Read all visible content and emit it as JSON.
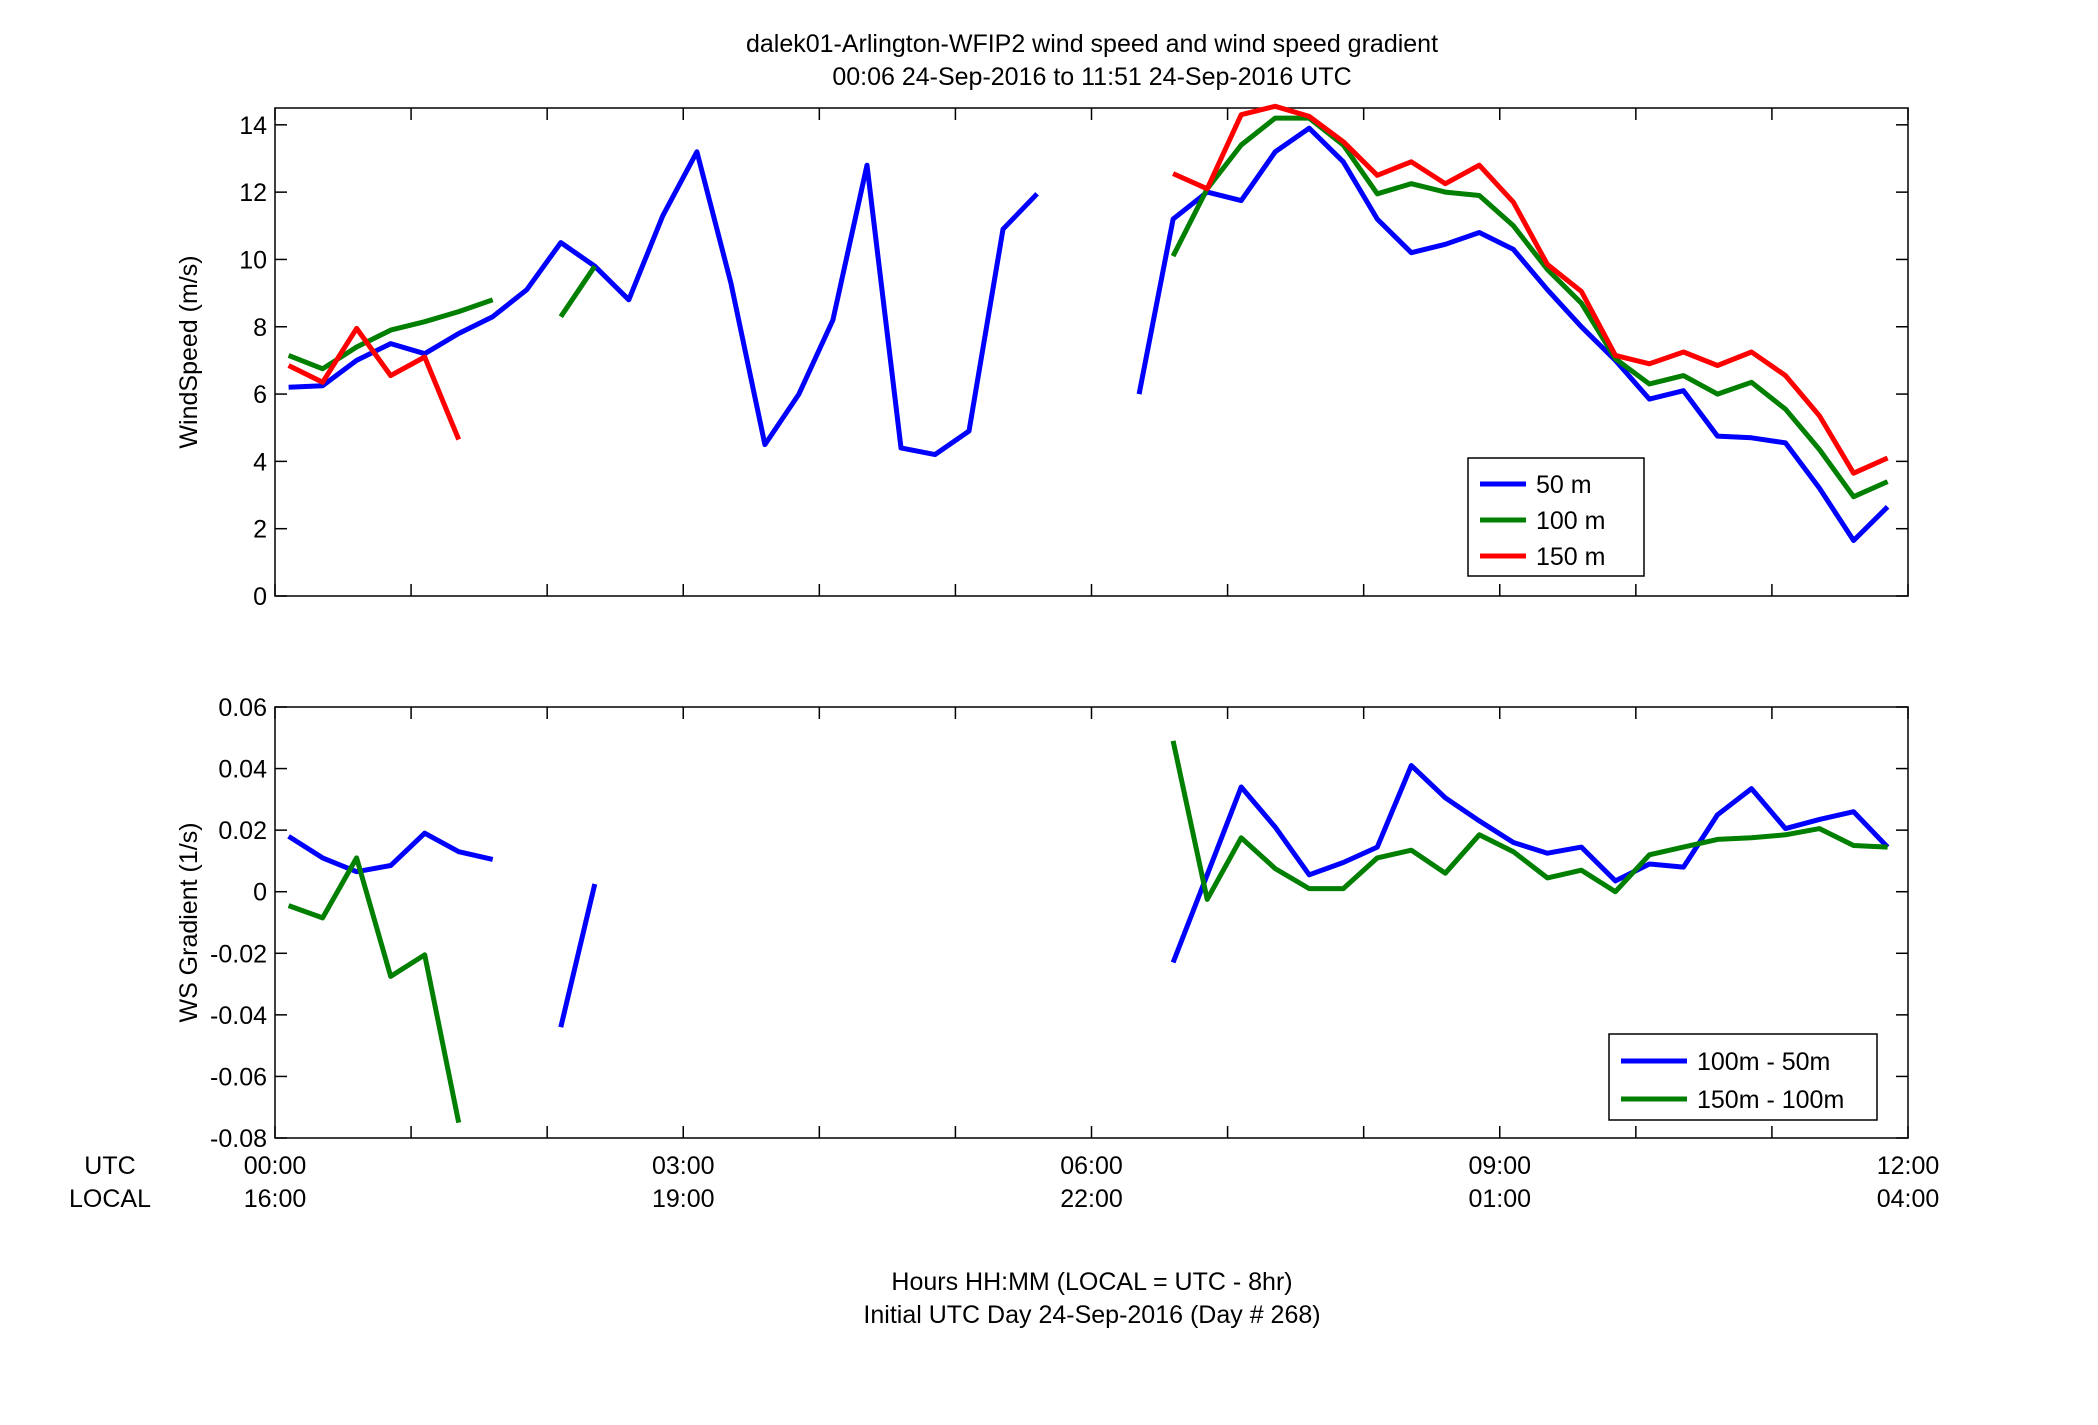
{
  "figure": {
    "title_line1": "dalek01-Arlington-WFIP2  wind speed and wind speed gradient",
    "title_line2": "00:06 24-Sep-2016 to 11:51 24-Sep-2016  UTC",
    "xlabel_line1": "Hours HH:MM  (LOCAL = UTC - 8hr)",
    "xlabel_line2": "Initial UTC Day 24-Sep-2016 (Day # 268)",
    "utc_label": "UTC",
    "local_label": "LOCAL",
    "colors": {
      "blue": "#0000ff",
      "green": "#007f00",
      "red": "#ff0000"
    }
  },
  "chart_data": [
    {
      "type": "line",
      "title": "dalek01-Arlington-WFIP2  wind speed and wind speed gradient",
      "ylabel": "WindSpeed (m/s)",
      "xlim": [
        0,
        12
      ],
      "ylim": [
        0,
        14.5
      ],
      "yticks": [
        0,
        2,
        4,
        6,
        8,
        10,
        12,
        14
      ],
      "ytick_labels": [
        "0",
        "2",
        "4",
        "6",
        "8",
        "10",
        "12",
        "14"
      ],
      "legend_position": "lower-right",
      "x": [
        0.1,
        0.35,
        0.6,
        0.85,
        1.1,
        1.35,
        1.6,
        1.85,
        2.1,
        2.35,
        2.6,
        2.85,
        3.1,
        3.35,
        3.6,
        3.85,
        4.1,
        4.35,
        4.6,
        4.85,
        5.1,
        5.35,
        5.6,
        5.85,
        6.1,
        6.35,
        6.6,
        6.85,
        7.1,
        7.35,
        7.6,
        7.85,
        8.1,
        8.35,
        8.6,
        8.85,
        9.1,
        9.35,
        9.6,
        9.85,
        10.1,
        10.35,
        10.6,
        10.85,
        11.1,
        11.35,
        11.6,
        11.85
      ],
      "series": [
        {
          "name": "50 m",
          "color": "#0000ff",
          "values": [
            6.2,
            6.25,
            7.0,
            7.5,
            7.2,
            7.8,
            8.3,
            9.1,
            10.5,
            9.8,
            8.8,
            11.3,
            13.2,
            9.3,
            4.5,
            6.0,
            8.2,
            12.8,
            4.4,
            4.2,
            4.9,
            10.9,
            11.95,
            null,
            null,
            6.0,
            11.2,
            12.0,
            11.75,
            13.2,
            13.9,
            12.9,
            11.2,
            10.2,
            10.45,
            10.8,
            10.3,
            9.1,
            8.0,
            7.0,
            5.85,
            6.1,
            4.75,
            4.7,
            4.55,
            3.2,
            1.65,
            2.65
          ]
        },
        {
          "name": "100 m",
          "color": "#007f00",
          "values": [
            7.15,
            6.75,
            7.4,
            7.9,
            8.15,
            8.45,
            8.8,
            null,
            8.3,
            9.8,
            null,
            null,
            null,
            null,
            null,
            null,
            null,
            null,
            null,
            null,
            null,
            null,
            null,
            null,
            null,
            null,
            10.1,
            12.1,
            13.4,
            14.2,
            14.2,
            13.4,
            11.95,
            12.25,
            12.0,
            11.9,
            11.0,
            9.7,
            8.7,
            7.05,
            6.3,
            6.55,
            6.0,
            6.35,
            5.55,
            4.35,
            2.95,
            3.4
          ]
        },
        {
          "name": "150 m",
          "color": "#ff0000",
          "values": [
            6.85,
            6.35,
            7.95,
            6.55,
            7.1,
            4.65,
            null,
            null,
            null,
            null,
            null,
            null,
            null,
            null,
            null,
            null,
            null,
            null,
            null,
            null,
            null,
            null,
            null,
            null,
            null,
            null,
            12.55,
            12.1,
            14.3,
            14.55,
            14.25,
            13.5,
            12.5,
            12.9,
            12.25,
            12.8,
            11.7,
            9.85,
            9.05,
            7.15,
            6.9,
            7.25,
            6.85,
            7.25,
            6.55,
            5.35,
            3.65,
            4.1
          ]
        }
      ]
    },
    {
      "type": "line",
      "ylabel": "WS Gradient (1/s)",
      "xlabel": "Hours HH:MM  (LOCAL = UTC - 8hr)",
      "xlim": [
        0,
        12
      ],
      "ylim": [
        -0.08,
        0.06
      ],
      "yticks": [
        -0.08,
        -0.06,
        -0.04,
        -0.02,
        0,
        0.02,
        0.04,
        0.06
      ],
      "ytick_labels": [
        "-0.08",
        "-0.06",
        "-0.04",
        "-0.02",
        "0",
        "0.02",
        "0.04",
        "0.06"
      ],
      "xticks": [
        0,
        3,
        6,
        9,
        12
      ],
      "xtick_labels_utc": [
        "00:00",
        "03:00",
        "06:00",
        "09:00",
        "12:00"
      ],
      "xtick_labels_local": [
        "16:00",
        "19:00",
        "22:00",
        "01:00",
        "04:00"
      ],
      "legend_position": "lower-right",
      "x": [
        0.1,
        0.35,
        0.6,
        0.85,
        1.1,
        1.35,
        1.6,
        1.85,
        2.1,
        2.35,
        2.6,
        2.85,
        3.1,
        3.35,
        3.6,
        3.85,
        4.1,
        4.35,
        4.6,
        4.85,
        5.1,
        5.35,
        5.6,
        5.85,
        6.1,
        6.35,
        6.6,
        6.85,
        7.1,
        7.35,
        7.6,
        7.85,
        8.1,
        8.35,
        8.6,
        8.85,
        9.1,
        9.35,
        9.6,
        9.85,
        10.1,
        10.35,
        10.6,
        10.85,
        11.1,
        11.35,
        11.6,
        11.85
      ],
      "series": [
        {
          "name": "100m - 50m",
          "color": "#0000ff",
          "values": [
            0.018,
            0.011,
            0.0065,
            0.0085,
            0.019,
            0.013,
            0.0105,
            null,
            -0.044,
            0.0025,
            null,
            null,
            null,
            null,
            null,
            null,
            null,
            null,
            null,
            null,
            null,
            null,
            null,
            null,
            null,
            null,
            -0.023,
            0.0055,
            0.034,
            0.021,
            0.0055,
            0.0095,
            0.0145,
            0.041,
            0.0305,
            0.023,
            0.016,
            0.0125,
            0.0145,
            0.0035,
            0.009,
            0.008,
            0.025,
            0.0335,
            0.0205,
            0.0235,
            0.026,
            0.0145
          ]
        },
        {
          "name": "150m - 100m",
          "color": "#007f00",
          "values": [
            -0.0045,
            -0.0085,
            0.011,
            -0.0275,
            -0.0205,
            -0.075,
            null,
            null,
            null,
            null,
            null,
            null,
            null,
            null,
            null,
            null,
            null,
            null,
            null,
            null,
            null,
            null,
            null,
            null,
            null,
            null,
            0.049,
            -0.0025,
            0.0175,
            0.0075,
            0.001,
            0.001,
            0.011,
            0.0135,
            0.006,
            0.0185,
            0.013,
            0.0045,
            0.007,
            0.0,
            0.012,
            0.0145,
            0.017,
            0.0175,
            0.0185,
            0.0205,
            0.015,
            0.0145
          ]
        }
      ]
    }
  ]
}
